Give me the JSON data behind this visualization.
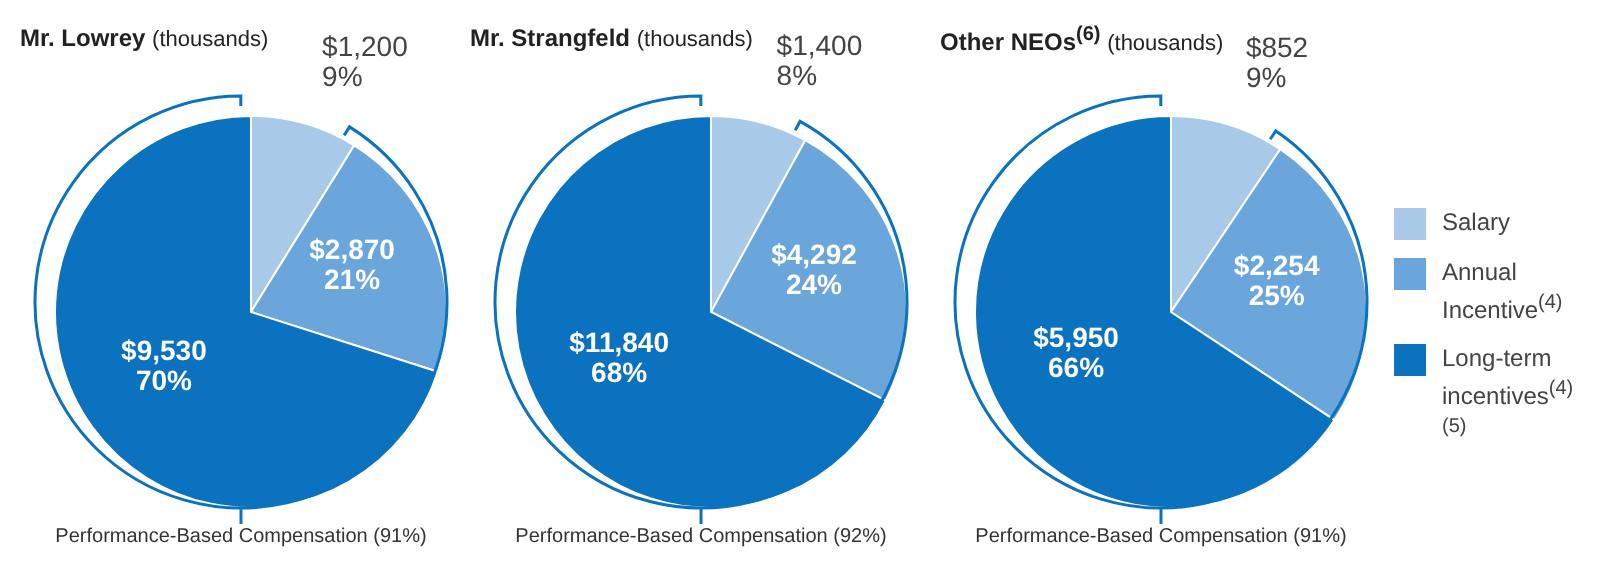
{
  "chart_data": [
    {
      "type": "pie",
      "title": "Mr. Lowrey",
      "subtitle": "(thousands)",
      "categories": [
        null,
        null,
        null
      ],
      "values": [
        1200,
        2870,
        9530
      ],
      "colors": [
        "#a9c9e9",
        "#6aa6dc",
        "#0a72bf"
      ],
      "value_labels": [
        "$1,200\n9%",
        "$2,870\n21%",
        "$9,530\n70%"
      ],
      "annotations": [
        "Performance-Based Compensation (91%)"
      ]
    },
    {
      "type": "pie",
      "title": "Mr. Strangfeld",
      "subtitle": "(thousands)",
      "categories": [
        null,
        null,
        null
      ],
      "values": [
        1400,
        4292,
        11840
      ],
      "colors": [
        "#a9c9e9",
        "#6aa6dc",
        "#0a72bf"
      ],
      "value_labels": [
        "$1,400\n8%",
        "$4,292\n24%",
        "$11,840\n68%"
      ],
      "annotations": [
        "Performance-Based Compensation (92%)"
      ]
    },
    {
      "type": "pie",
      "title": "Other NEOs$^{(6)}$",
      "subtitle": "(thousands)",
      "categories": [
        "Salary",
        "Annual Incentive$^{(4)}$",
        "Long-term incentives$^{(4)(5)}$"
      ],
      "values": [
        852,
        2254,
        5950
      ],
      "colors": [
        "#a9c9e9",
        "#6aa6dc",
        "#0a72bf"
      ],
      "value_labels": [
        "$852\n9%",
        "$2,254\n25%",
        "$5,950\n66%"
      ],
      "annotations": [
        "Performance-Based Compensation (91%)"
      ],
      "legend": "right"
    }
  ]
}
